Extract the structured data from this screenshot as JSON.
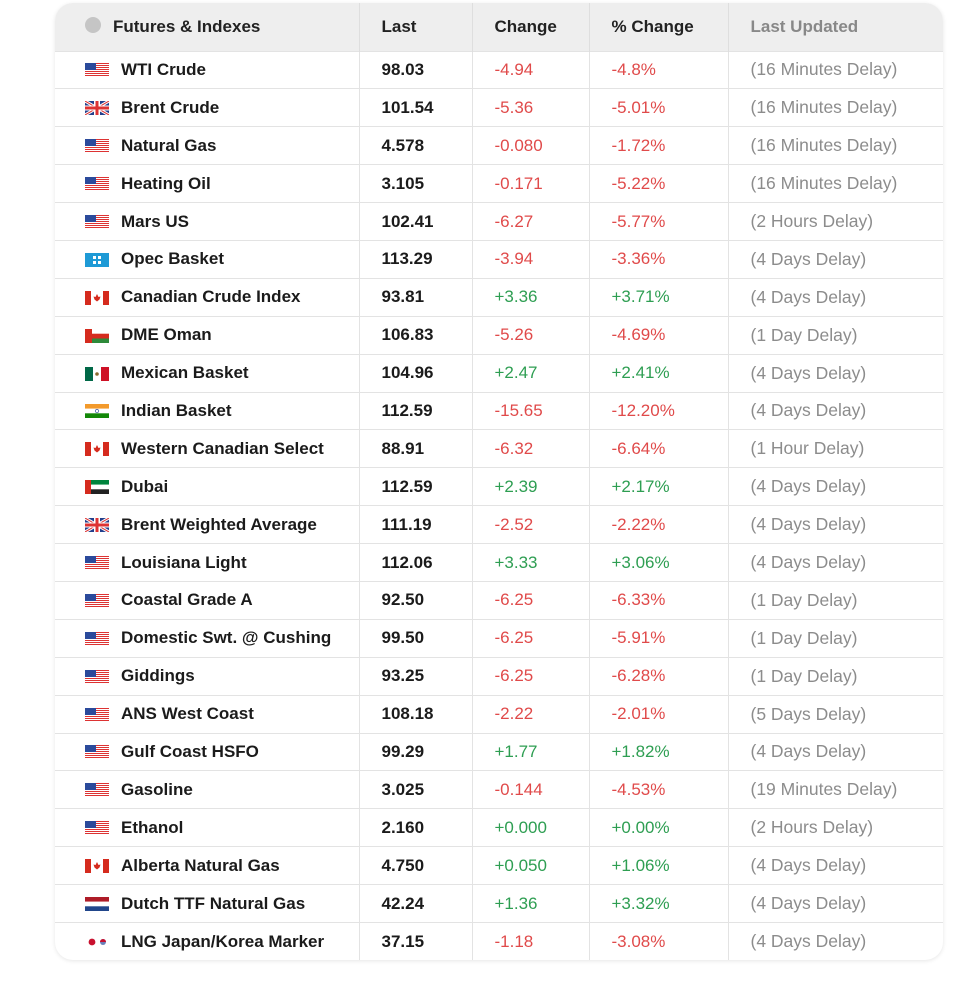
{
  "header": {
    "col_name": "Futures & Indexes",
    "col_last": "Last",
    "col_change": "Change",
    "col_pct": "% Change",
    "col_updated": "Last Updated",
    "globe_icon": "globe-icon"
  },
  "colors": {
    "positive": "#2e9e52",
    "negative": "#e04a4a",
    "muted": "#8c8c8c"
  },
  "rows": [
    {
      "flag": "us-flag",
      "name": "WTI Crude",
      "last": "98.03",
      "change": "-4.94",
      "pct": "-4.8%",
      "updated": "(16 Minutes Delay)",
      "dir": "neg"
    },
    {
      "flag": "uk-flag",
      "name": "Brent Crude",
      "last": "101.54",
      "change": "-5.36",
      "pct": "-5.01%",
      "updated": "(16 Minutes Delay)",
      "dir": "neg"
    },
    {
      "flag": "us-flag",
      "name": "Natural Gas",
      "last": "4.578",
      "change": "-0.080",
      "pct": "-1.72%",
      "updated": "(16 Minutes Delay)",
      "dir": "neg"
    },
    {
      "flag": "us-flag",
      "name": "Heating Oil",
      "last": "3.105",
      "change": "-0.171",
      "pct": "-5.22%",
      "updated": "(16 Minutes Delay)",
      "dir": "neg"
    },
    {
      "flag": "us-flag",
      "name": "Mars US",
      "last": "102.41",
      "change": "-6.27",
      "pct": "-5.77%",
      "updated": "(2 Hours Delay)",
      "dir": "neg"
    },
    {
      "flag": "opec-flag",
      "name": "Opec Basket",
      "last": "113.29",
      "change": "-3.94",
      "pct": "-3.36%",
      "updated": "(4 Days Delay)",
      "dir": "neg"
    },
    {
      "flag": "canada-flag",
      "name": "Canadian Crude Index",
      "last": "93.81",
      "change": "+3.36",
      "pct": "+3.71%",
      "updated": "(4 Days Delay)",
      "dir": "pos"
    },
    {
      "flag": "oman-flag",
      "name": "DME Oman",
      "last": "106.83",
      "change": "-5.26",
      "pct": "-4.69%",
      "updated": "(1 Day Delay)",
      "dir": "neg"
    },
    {
      "flag": "mexico-flag",
      "name": "Mexican Basket",
      "last": "104.96",
      "change": "+2.47",
      "pct": "+2.41%",
      "updated": "(4 Days Delay)",
      "dir": "pos"
    },
    {
      "flag": "india-flag",
      "name": "Indian Basket",
      "last": "112.59",
      "change": "-15.65",
      "pct": "-12.20%",
      "updated": "(4 Days Delay)",
      "dir": "neg"
    },
    {
      "flag": "canada-flag",
      "name": "Western Canadian Select",
      "last": "88.91",
      "change": "-6.32",
      "pct": "-6.64%",
      "updated": "(1 Hour Delay)",
      "dir": "neg"
    },
    {
      "flag": "uae-flag",
      "name": "Dubai",
      "last": "112.59",
      "change": "+2.39",
      "pct": "+2.17%",
      "updated": "(4 Days Delay)",
      "dir": "pos"
    },
    {
      "flag": "uk-flag",
      "name": "Brent Weighted Average",
      "last": "111.19",
      "change": "-2.52",
      "pct": "-2.22%",
      "updated": "(4 Days Delay)",
      "dir": "neg"
    },
    {
      "flag": "us-flag",
      "name": "Louisiana Light",
      "last": "112.06",
      "change": "+3.33",
      "pct": "+3.06%",
      "updated": "(4 Days Delay)",
      "dir": "pos"
    },
    {
      "flag": "us-flag",
      "name": "Coastal Grade A",
      "last": "92.50",
      "change": "-6.25",
      "pct": "-6.33%",
      "updated": "(1 Day Delay)",
      "dir": "neg"
    },
    {
      "flag": "us-flag",
      "name": "Domestic Swt. @ Cushing",
      "last": "99.50",
      "change": "-6.25",
      "pct": "-5.91%",
      "updated": "(1 Day Delay)",
      "dir": "neg"
    },
    {
      "flag": "us-flag",
      "name": "Giddings",
      "last": "93.25",
      "change": "-6.25",
      "pct": "-6.28%",
      "updated": "(1 Day Delay)",
      "dir": "neg"
    },
    {
      "flag": "us-flag",
      "name": "ANS West Coast",
      "last": "108.18",
      "change": "-2.22",
      "pct": "-2.01%",
      "updated": "(5 Days Delay)",
      "dir": "neg"
    },
    {
      "flag": "us-flag",
      "name": "Gulf Coast HSFO",
      "last": "99.29",
      "change": "+1.77",
      "pct": "+1.82%",
      "updated": "(4 Days Delay)",
      "dir": "pos"
    },
    {
      "flag": "us-flag",
      "name": "Gasoline",
      "last": "3.025",
      "change": "-0.144",
      "pct": "-4.53%",
      "updated": "(19 Minutes Delay)",
      "dir": "neg"
    },
    {
      "flag": "us-flag",
      "name": "Ethanol",
      "last": "2.160",
      "change": "+0.000",
      "pct": "+0.00%",
      "updated": "(2 Hours Delay)",
      "dir": "pos"
    },
    {
      "flag": "canada-flag",
      "name": "Alberta Natural Gas",
      "last": "4.750",
      "change": "+0.050",
      "pct": "+1.06%",
      "updated": "(4 Days Delay)",
      "dir": "pos"
    },
    {
      "flag": "netherlands-flag",
      "name": "Dutch TTF Natural Gas",
      "last": "42.24",
      "change": "+1.36",
      "pct": "+3.32%",
      "updated": "(4 Days Delay)",
      "dir": "pos"
    },
    {
      "flag": "japan-korea-flag",
      "name": "LNG Japan/Korea Marker",
      "last": "37.15",
      "change": "-1.18",
      "pct": "-3.08%",
      "updated": "(4 Days Delay)",
      "dir": "neg"
    }
  ]
}
